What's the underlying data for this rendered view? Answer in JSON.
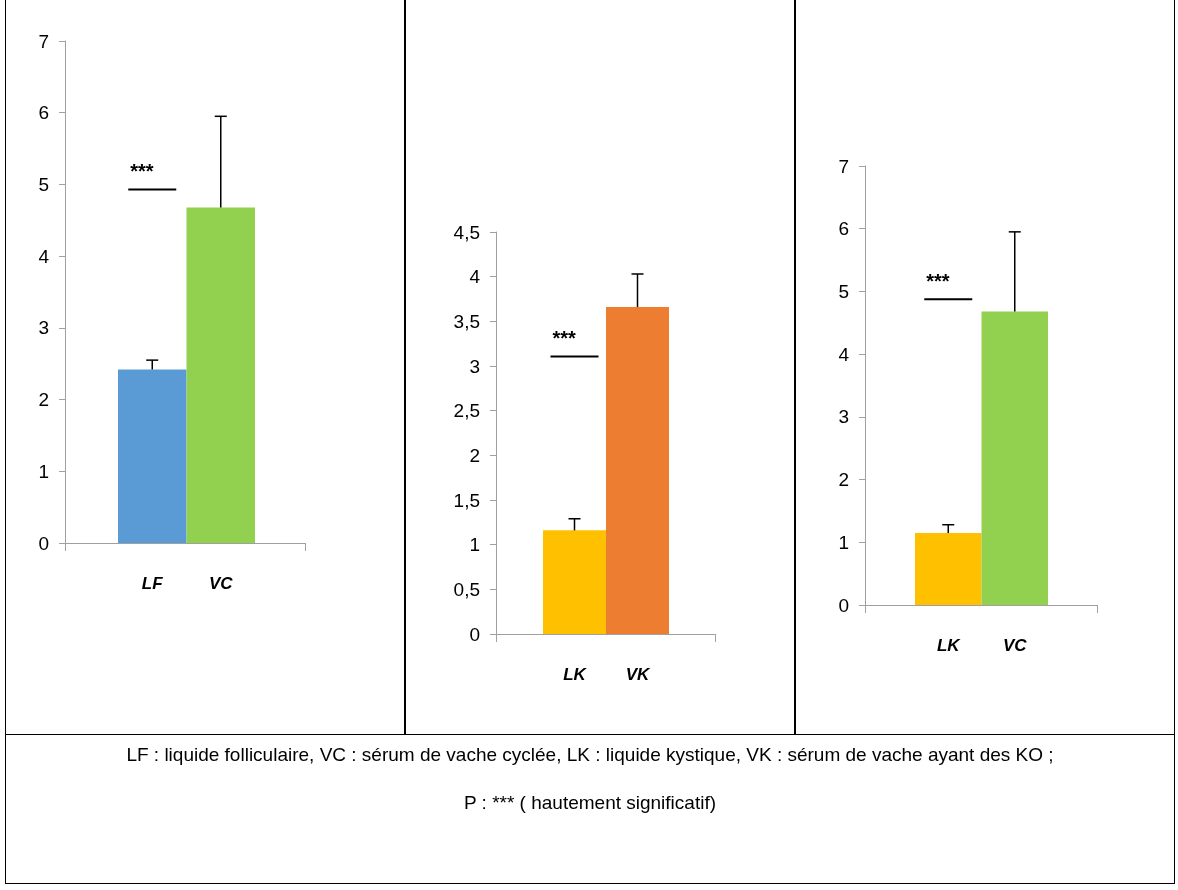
{
  "chart_data": [
    {
      "type": "bar",
      "categories": [
        "LF",
        "VC"
      ],
      "values": [
        2.42,
        4.68
      ],
      "colors": [
        "#5b9bd5",
        "#92d050"
      ],
      "errors": [
        [
          2.42,
          2.55
        ],
        [
          4.68,
          5.95
        ]
      ],
      "ylim": [
        0,
        7
      ],
      "yticks": [
        0,
        1,
        2,
        3,
        4,
        5,
        6,
        7
      ],
      "grid": false,
      "annotations": [
        "***",
        "LF : liquide folliculaire, VC : sérum de vache cyclée, LK : liquide kystique, VK : sérum de vache ayant des KO ;",
        "P : *** ( hautement significatif)"
      ]
    },
    {
      "type": "bar",
      "categories": [
        "LK",
        "VK"
      ],
      "values": [
        1.16,
        3.66
      ],
      "colors": [
        "#ffc000",
        "#ed7d31"
      ],
      "errors": [
        [
          1.16,
          1.29
        ],
        [
          3.66,
          4.03
        ]
      ],
      "ylim": [
        0,
        4.5
      ],
      "yticks": [
        0,
        {
          "value": 0.5,
          "label": "0,5"
        },
        1,
        {
          "value": 1.5,
          "label": "1,5"
        },
        2,
        {
          "value": 2.5,
          "label": "2,5"
        },
        3,
        {
          "value": 3.5,
          "label": "3,5"
        },
        4,
        {
          "value": 4.5,
          "label": "4,5"
        }
      ],
      "grid": false,
      "annotations": [
        "***"
      ]
    },
    {
      "type": "bar",
      "categories": [
        "LK",
        "VC"
      ],
      "values": [
        1.15,
        4.68
      ],
      "colors": [
        "#ffc000",
        "#92d050"
      ],
      "errors": [
        [
          1.15,
          1.28
        ],
        [
          4.68,
          5.95
        ]
      ],
      "ylim": [
        0,
        7
      ],
      "yticks": [
        0,
        1,
        2,
        3,
        4,
        5,
        6,
        7
      ],
      "grid": false,
      "annotations": [
        "***"
      ]
    }
  ]
}
